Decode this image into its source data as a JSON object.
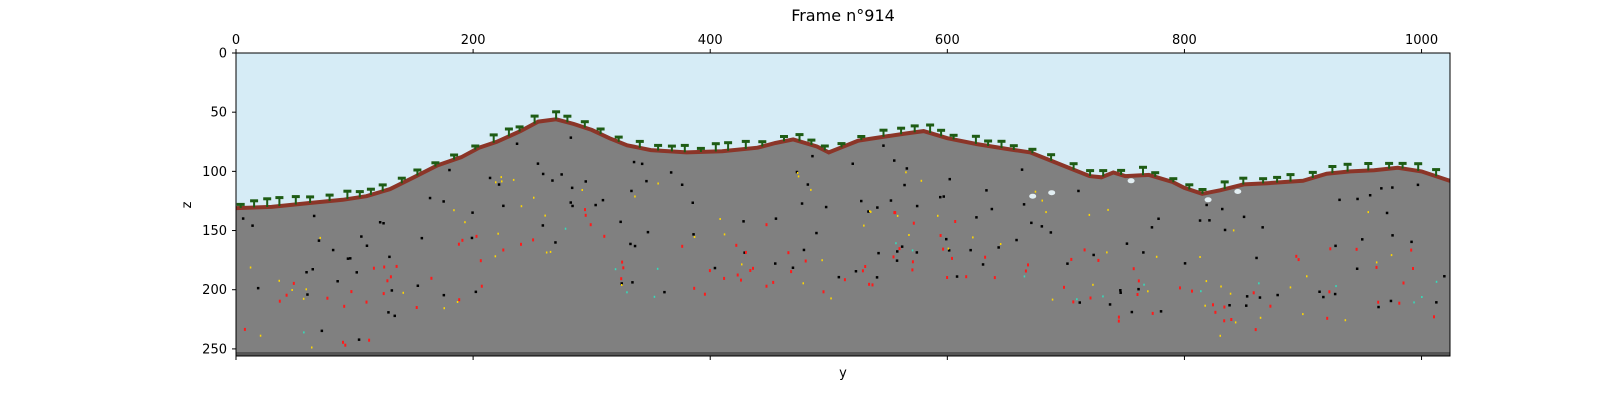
{
  "chart_data": {
    "type": "heatmap",
    "title": "Frame n°914",
    "xlabel": "y",
    "ylabel": "z",
    "xlim": [
      0,
      1024
    ],
    "ylim": [
      256,
      0
    ],
    "x_ticks": [
      "0",
      "200",
      "400",
      "600",
      "800",
      "1000"
    ],
    "y_ticks": [
      "0",
      "50",
      "100",
      "150",
      "200",
      "250"
    ],
    "x_tick_values": [
      0,
      200,
      400,
      600,
      800,
      1000
    ],
    "y_tick_values": [
      0,
      50,
      100,
      150,
      200,
      250
    ],
    "x_tick_position": "top",
    "grid": false,
    "surface_profile": {
      "y": [
        0,
        30,
        60,
        90,
        110,
        130,
        150,
        170,
        190,
        205,
        220,
        240,
        255,
        270,
        285,
        300,
        315,
        330,
        350,
        380,
        410,
        440,
        455,
        470,
        490,
        500,
        510,
        525,
        545,
        565,
        580,
        600,
        625,
        650,
        670,
        690,
        705,
        720,
        730,
        740,
        750,
        770,
        790,
        800,
        815,
        830,
        850,
        870,
        900,
        920,
        940,
        960,
        980,
        1000,
        1024
      ],
      "z": [
        131,
        130,
        127,
        124,
        121,
        115,
        105,
        95,
        88,
        80,
        75,
        66,
        58,
        56,
        60,
        65,
        72,
        78,
        82,
        84,
        83,
        80,
        76,
        73,
        79,
        84,
        80,
        74,
        71,
        68,
        66,
        72,
        77,
        81,
        84,
        92,
        98,
        104,
        105,
        101,
        104,
        103,
        109,
        114,
        119,
        116,
        111,
        110,
        108,
        102,
        100,
        99,
        97,
        100,
        108
      ]
    },
    "materials": [
      {
        "name": "air",
        "color": "#d6ecf6"
      },
      {
        "name": "rock",
        "color": "#808080"
      },
      {
        "name": "topsoil",
        "color": "#8b3528"
      },
      {
        "name": "vegetation",
        "color": "#1e5c14"
      },
      {
        "name": "cave",
        "color": "#000000"
      },
      {
        "name": "water",
        "color": "#e2eef2"
      },
      {
        "name": "red mineral",
        "color": "#ff1a1a"
      },
      {
        "name": "yellow mineral",
        "color": "#ffd700"
      },
      {
        "name": "cyan mineral",
        "color": "#33ddbb"
      },
      {
        "name": "bedrock",
        "color": "#555555"
      }
    ]
  }
}
